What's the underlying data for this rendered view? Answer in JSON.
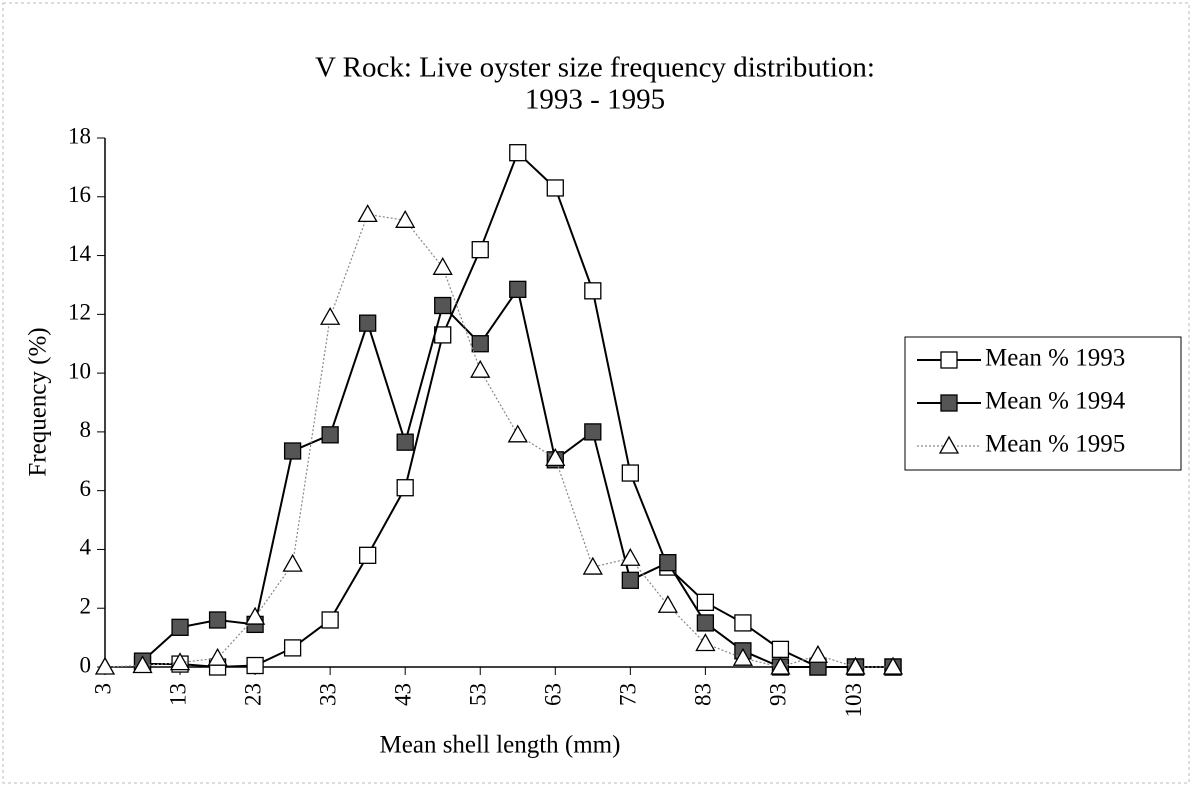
{
  "chart_data": {
    "type": "line",
    "title": [
      "V Rock: Live oyster size frequency distribution:",
      "1993 - 1995"
    ],
    "x_label": "Mean shell length (mm)",
    "y_label": "Frequency (%)",
    "x": [
      3,
      8,
      13,
      18,
      23,
      28,
      33,
      38,
      43,
      48,
      53,
      58,
      63,
      68,
      73,
      78,
      83,
      88,
      93,
      98,
      103,
      108
    ],
    "xlim": [
      3,
      108
    ],
    "xticks": [
      3,
      13,
      23,
      33,
      43,
      53,
      63,
      73,
      83,
      93,
      103
    ],
    "ylim": [
      0,
      18
    ],
    "yticks": [
      0,
      2,
      4,
      6,
      8,
      10,
      12,
      14,
      16,
      18
    ],
    "legend": "right",
    "series": [
      {
        "name": "Mean % 1993",
        "color": "#000000",
        "marker": "square-open",
        "values": [
          null,
          0.1,
          0.1,
          0,
          0.05,
          0.65,
          1.6,
          3.8,
          6.1,
          11.3,
          14.2,
          17.5,
          16.3,
          12.8,
          6.6,
          3.4,
          2.2,
          1.5,
          0.6,
          0,
          0,
          0
        ]
      },
      {
        "name": "Mean % 1994",
        "color": "#000000",
        "marker": "square-filled",
        "values": [
          null,
          0.2,
          1.35,
          1.6,
          1.45,
          7.35,
          7.9,
          11.7,
          7.65,
          12.3,
          11.0,
          12.85,
          7.05,
          8.0,
          2.95,
          3.55,
          1.5,
          0.55,
          0,
          0,
          0,
          0
        ]
      },
      {
        "name": "Mean % 1995",
        "color": "#888888",
        "marker": "triangle-open",
        "values": [
          0,
          0.05,
          0.15,
          0.3,
          1.7,
          3.5,
          11.9,
          15.4,
          15.2,
          13.6,
          10.1,
          7.9,
          7.1,
          3.4,
          3.7,
          2.1,
          0.8,
          0.3,
          0,
          0.4,
          0,
          0
        ]
      }
    ]
  }
}
